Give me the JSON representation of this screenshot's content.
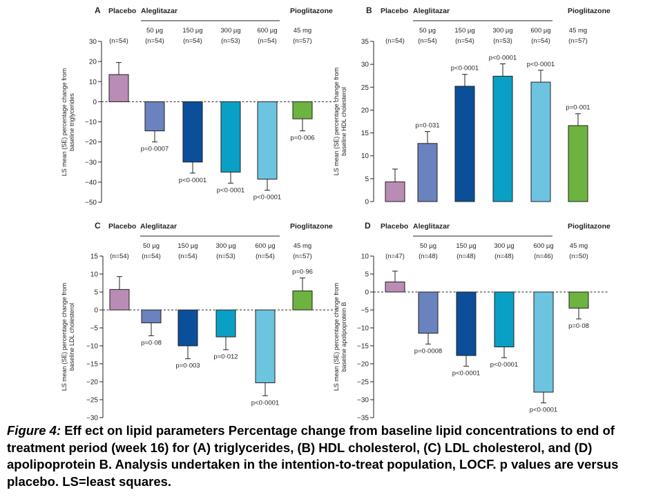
{
  "colors": {
    "placebo": "#b98cb5",
    "ale50": "#6a82bd",
    "ale150": "#0b4f9b",
    "ale300": "#0aa0c5",
    "ale600": "#6cc4e0",
    "pio": "#6db33f",
    "axis": "#231f20",
    "header_line": "#231f20"
  },
  "chart_data": [
    {
      "panel": "A",
      "type": "bar",
      "header": {
        "placebo": "Placebo",
        "aleglitazar": "Aleglitazar",
        "pioglitazone": "Pioglitazone"
      },
      "doses": [
        "",
        "50 µg",
        "150 µg",
        "300 µg",
        "600 µg",
        "45 mg"
      ],
      "ns": [
        "(n=54)",
        "(n=54)",
        "(n=54)",
        "(n=53)",
        "(n=54)",
        "(n=57)"
      ],
      "ylabel": [
        "LS mean (SE) percentage change from",
        "baseline triglycerides"
      ],
      "ylim": [
        -50,
        30
      ],
      "yticks": [
        30,
        20,
        10,
        0,
        -10,
        -20,
        -30,
        -40,
        -50
      ],
      "values": [
        13.5,
        -14.5,
        -30,
        -35,
        -38.5,
        -8.5
      ],
      "errors": [
        6,
        5.5,
        5.5,
        5.5,
        5.5,
        6
      ],
      "pvalues": [
        "",
        "p=0·0007",
        "p<0·0001",
        "p<0·0001",
        "p<0·0001",
        "p=0·006"
      ],
      "zero_line": true
    },
    {
      "panel": "B",
      "type": "bar",
      "header": {
        "placebo": "Placebo",
        "aleglitazar": "Aleglitazar",
        "pioglitazone": "Pioglitazone"
      },
      "doses": [
        "",
        "50 µg",
        "150 µg",
        "300 µg",
        "600 µg",
        "45 mg"
      ],
      "ns": [
        "(n=54)",
        "(n=54)",
        "(n=54)",
        "(n=53)",
        "(n=54)",
        "(n=57)"
      ],
      "ylabel": [
        "LS mean (SE) percentage change from",
        "baseline HDL cholesterol"
      ],
      "ylim": [
        0,
        35
      ],
      "yticks": [
        35,
        30,
        25,
        20,
        15,
        10,
        5,
        0
      ],
      "values": [
        4.3,
        12.7,
        25.2,
        27.4,
        26.1,
        16.6
      ],
      "errors": [
        2.8,
        2.6,
        2.6,
        2.7,
        2.6,
        2.6
      ],
      "pvalues": [
        "",
        "p=0·031",
        "p<0·0001",
        "p<0·0001",
        "p<0·0001",
        "p=0·001"
      ],
      "zero_line": false
    },
    {
      "panel": "C",
      "type": "bar",
      "header": {
        "placebo": "Placebo",
        "aleglitazar": "Aleglitazar",
        "pioglitazone": "Pioglitazone"
      },
      "doses": [
        "",
        "50 µg",
        "150 µg",
        "300 µg",
        "600 µg",
        "45 mg"
      ],
      "ns": [
        "(n=54)",
        "(n=54)",
        "(n=54)",
        "(n=53)",
        "(n=54)",
        "(n=57)"
      ],
      "ylabel": [
        "LS mean (SE) percentage change from",
        "baseline LDL cholesterol"
      ],
      "ylim": [
        -30,
        15
      ],
      "yticks": [
        15,
        10,
        5,
        0,
        -5,
        -10,
        -15,
        -20,
        -25,
        -30
      ],
      "values": [
        5.7,
        -3.6,
        -10,
        -7.5,
        -20.3,
        5.3
      ],
      "errors": [
        3.6,
        3.6,
        3.6,
        3.6,
        3.6,
        3.6
      ],
      "pvalues": [
        "",
        "p=0·08",
        "p=0·003",
        "p=0·012",
        "p<0·0001",
        "p=0·96"
      ],
      "zero_line": true
    },
    {
      "panel": "D",
      "type": "bar",
      "header": {
        "placebo": "Placebo",
        "aleglitazar": "Aleglitazar",
        "pioglitazone": "Pioglitazone"
      },
      "doses": [
        "",
        "50 µg",
        "150 µg",
        "300 µg",
        "600 µg",
        "45 mg"
      ],
      "ns": [
        "(n=47)",
        "(n=48)",
        "(n=48)",
        "(n=48)",
        "(n=46)",
        "(n=50)"
      ],
      "ylabel": [
        "LS mean (SE) percentage change from",
        "baseline apolipoprotein B"
      ],
      "ylim": [
        -35,
        10
      ],
      "yticks": [
        10,
        5,
        0,
        -5,
        -10,
        -15,
        -20,
        -25,
        -30,
        -35
      ],
      "values": [
        2.8,
        -11.5,
        -17.7,
        -15.3,
        -27.9,
        -4.5
      ],
      "errors": [
        3.0,
        3.0,
        3.0,
        3.0,
        3.0,
        3.0
      ],
      "pvalues": [
        "",
        "p=0·0008",
        "p<0·0001",
        "p<0·0001",
        "p<0·0001",
        "p=0·08"
      ],
      "zero_line": true
    }
  ],
  "caption": {
    "label": "Figure 4:",
    "text": "Eff ect on lipid parameters Percentage change from baseline lipid concentrations to end of treatment period (week 16) for (A) triglycerides, (B) HDL cholesterol, (C) LDL cholesterol, and (D) apolipoprotein B. Analysis undertaken in the intention-to-treat population, LOCF. p values are versus placebo. LS=least squares."
  }
}
